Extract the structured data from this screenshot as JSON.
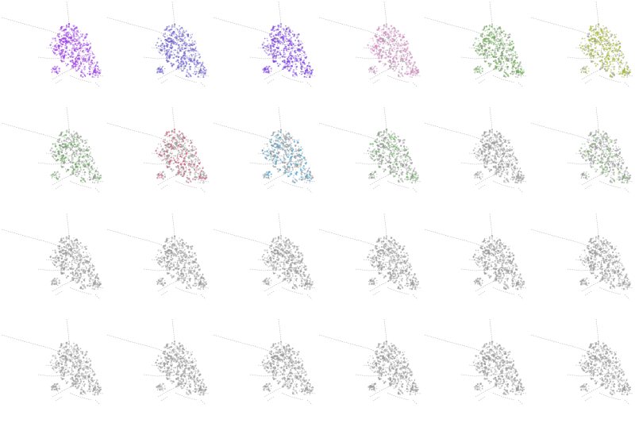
{
  "grid": {
    "rows": 4,
    "cols": 6
  },
  "background_color": "#ffffff",
  "base_network_color": "#9a9a9a",
  "panels": [
    {
      "highlight": "#9b3fe0",
      "intensity": 1.0
    },
    {
      "highlight": "#6a5fd0",
      "intensity": 0.85
    },
    {
      "highlight": "#7b3fe0",
      "intensity": 0.9
    },
    {
      "highlight": "#d48ac4",
      "intensity": 0.75
    },
    {
      "highlight": "#6aa84f",
      "intensity": 0.7
    },
    {
      "highlight": "#a8b840",
      "intensity": 0.7
    },
    {
      "highlight": "#5aa84a",
      "intensity": 0.35
    },
    {
      "highlight": "#d05070",
      "intensity": 0.35
    },
    {
      "highlight": "#4aa0c8",
      "intensity": 0.4
    },
    {
      "highlight": "#6ab060",
      "intensity": 0.25
    },
    {
      "highlight": "#a0a0a0",
      "intensity": 0.0
    },
    {
      "highlight": "#7ac060",
      "intensity": 0.2
    },
    {
      "highlight": "#a0a0a0",
      "intensity": 0.0
    },
    {
      "highlight": "#a0a0a0",
      "intensity": 0.0
    },
    {
      "highlight": "#a0a0a0",
      "intensity": 0.0
    },
    {
      "highlight": "#a0a0a0",
      "intensity": 0.0
    },
    {
      "highlight": "#a0a0a0",
      "intensity": 0.0
    },
    {
      "highlight": "#a0a0a0",
      "intensity": 0.0
    },
    {
      "highlight": "#a0a0a0",
      "intensity": 0.0
    },
    {
      "highlight": "#a0a0a0",
      "intensity": 0.0
    },
    {
      "highlight": "#a0a0a0",
      "intensity": 0.0
    },
    {
      "highlight": "#a0a0a0",
      "intensity": 0.0
    },
    {
      "highlight": "#a0a0a0",
      "intensity": 0.0
    },
    {
      "highlight": "#a0a0a0",
      "intensity": 0.0
    }
  ]
}
